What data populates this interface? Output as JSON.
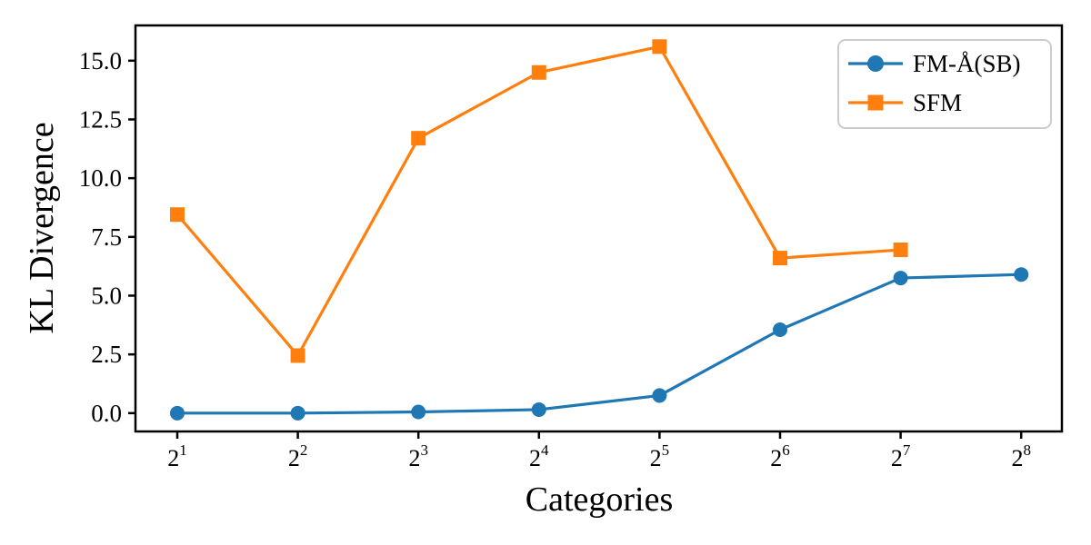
{
  "figure": {
    "background": "#ffffff",
    "text_color": "#000000",
    "spine_color": "#000000",
    "legend_border_color": "#cccccc"
  },
  "chart_data": {
    "type": "line",
    "title": "",
    "xlabel": "Categories",
    "ylabel": "KL Divergence",
    "categories": [
      "2^1",
      "2^2",
      "2^3",
      "2^4",
      "2^5",
      "2^6",
      "2^7",
      "2^8"
    ],
    "y_tick_labels": [
      "0.0",
      "2.5",
      "5.0",
      "7.5",
      "10.0",
      "12.5",
      "15.0"
    ],
    "ylim": [
      -0.78,
      16.5
    ],
    "grid": false,
    "legend_position": "upper right",
    "series": [
      {
        "name": "FM-Å(SB)",
        "color": "#1f77b4",
        "marker": "circle",
        "values": [
          0.0,
          0.0,
          0.05,
          0.15,
          0.75,
          3.55,
          5.75,
          5.9
        ]
      },
      {
        "name": "SFM",
        "color": "#ff7f0e",
        "marker": "square",
        "values": [
          8.45,
          2.45,
          11.7,
          14.5,
          15.6,
          6.6,
          6.95,
          null
        ]
      }
    ]
  }
}
